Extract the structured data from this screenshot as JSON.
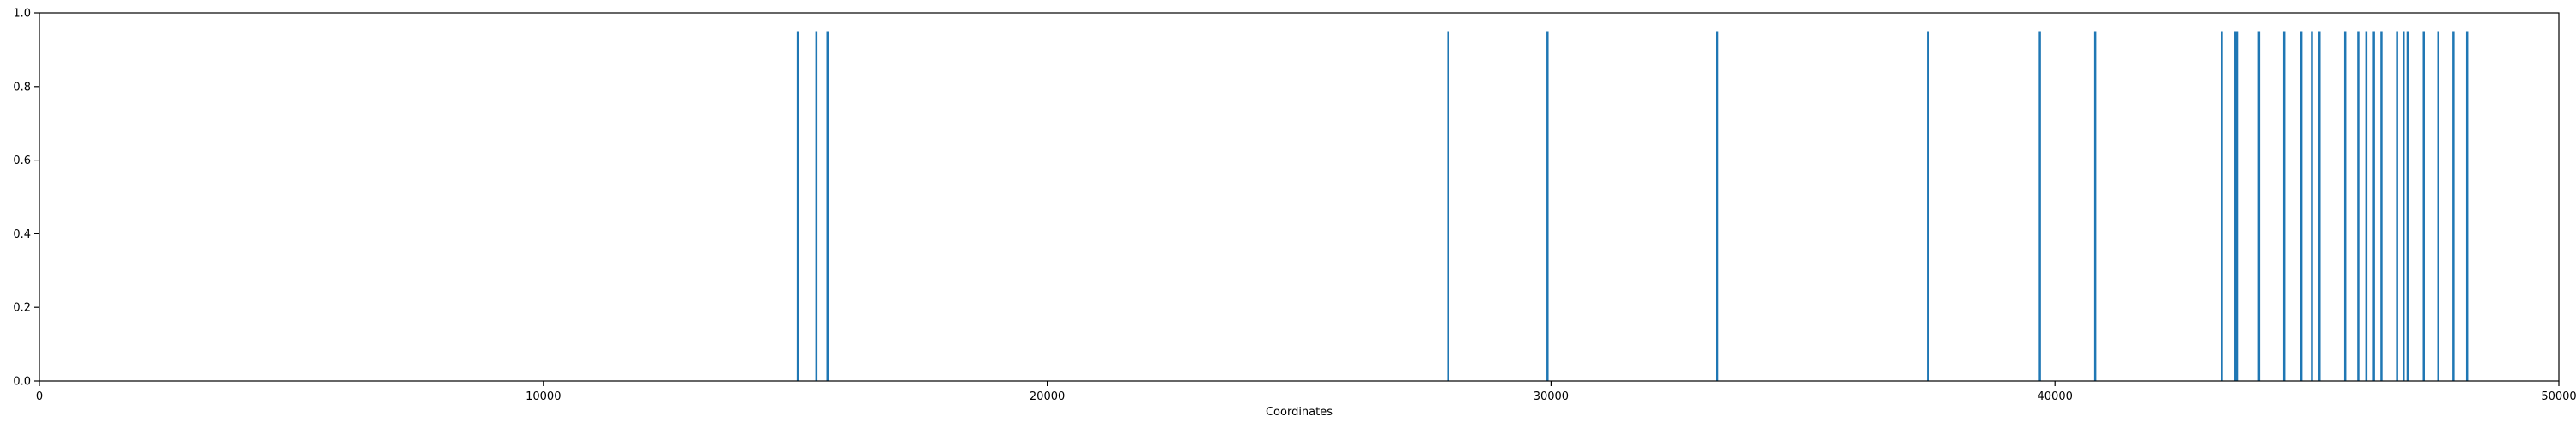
{
  "chart_data": {
    "type": "event",
    "title": "",
    "xlabel": "Coordinates",
    "ylabel": "",
    "xlim": [
      0,
      50000
    ],
    "ylim": [
      0,
      1
    ],
    "grid": false,
    "x_ticks": [
      0,
      10000,
      20000,
      30000,
      40000,
      50000
    ],
    "x_tick_labels": [
      "0",
      "10000",
      "20000",
      "30000",
      "40000",
      "50000"
    ],
    "y_ticks": [
      0,
      0.2,
      0.4,
      0.6,
      0.8,
      1
    ],
    "y_tick_labels": [
      "0.0",
      "0.2",
      "0.4",
      "0.6",
      "0.8",
      "1.0"
    ],
    "colors": {
      "series": "#1f77b4",
      "axis": "#000000"
    },
    "series": [
      {
        "values": [
          15050,
          15420,
          15640,
          27960,
          29930,
          33300,
          37480,
          39700,
          40800,
          43310,
          43580,
          43610,
          44050,
          44550,
          44890,
          45100,
          45250,
          45760,
          46020,
          46180,
          46330,
          46480,
          46790,
          46920,
          47000,
          47320,
          47610,
          47910,
          48180
        ],
        "height": 0.95
      }
    ]
  }
}
